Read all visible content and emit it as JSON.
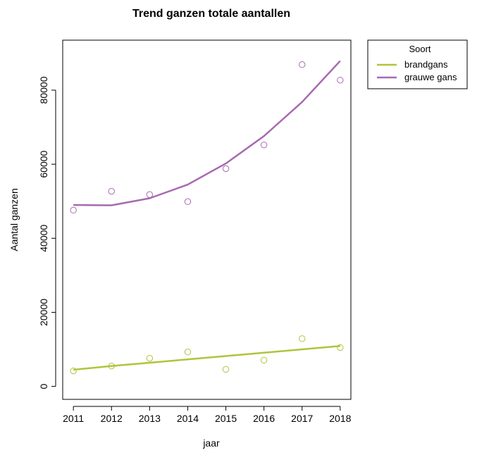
{
  "chart_data": {
    "type": "line",
    "title": "Trend ganzen totale aantallen",
    "xlabel": "jaar",
    "ylabel": "Aantal ganzen",
    "x": [
      2011,
      2012,
      2013,
      2014,
      2015,
      2016,
      2017,
      2018
    ],
    "xlim": [
      2010.72,
      2018.28
    ],
    "ylim": [
      -3500,
      93500
    ],
    "x_ticks": [
      "2011",
      "2012",
      "2013",
      "2014",
      "2015",
      "2016",
      "2017",
      "2018"
    ],
    "y_ticks": [
      "0",
      "20000",
      "40000",
      "60000",
      "80000"
    ],
    "y_tick_values": [
      0,
      20000,
      40000,
      60000,
      80000
    ],
    "grid": false,
    "legend": {
      "title": "Soort",
      "placement": "outside-top-right"
    },
    "series": [
      {
        "name": "brandgans",
        "color": "#b2c33b",
        "observed": [
          4200,
          5500,
          7600,
          9300,
          4600,
          7100,
          12900,
          10500
        ],
        "trend": [
          4500,
          5500,
          6400,
          7300,
          8200,
          9100,
          10000,
          10900
        ]
      },
      {
        "name": "grauwe gans",
        "color": "#a76ab0",
        "observed": [
          47600,
          52700,
          51800,
          49900,
          58800,
          65200,
          86900,
          82700
        ],
        "trend": [
          49000,
          48900,
          50800,
          54500,
          60200,
          67600,
          76800,
          87900
        ]
      }
    ]
  }
}
